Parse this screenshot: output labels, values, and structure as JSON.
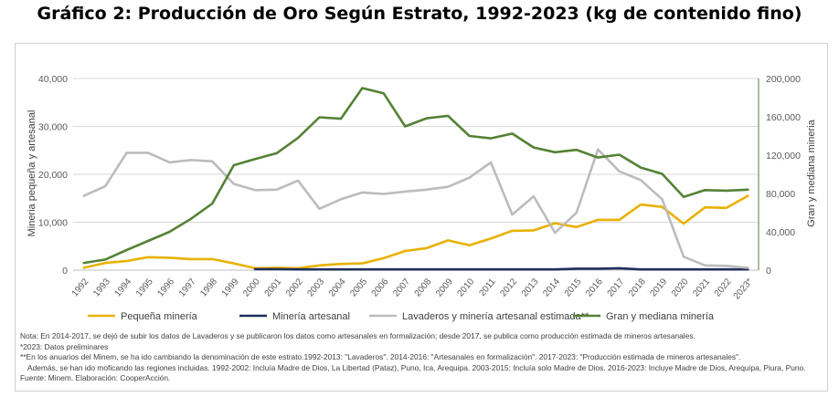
{
  "title": "Gráfico 2: Producción de Oro Según Estrato, 1992-2023 (kg de contenido fino)",
  "chart_data": {
    "type": "line",
    "x": [
      "1992",
      "1993",
      "1994",
      "1995",
      "1996",
      "1997",
      "1998",
      "1999",
      "2000",
      "2001",
      "2002",
      "2003",
      "2004",
      "2005",
      "2006",
      "2007",
      "2008",
      "2009",
      "2010",
      "2011",
      "2012",
      "2013",
      "2014",
      "2015",
      "2016",
      "2017",
      "2018",
      "2019",
      "2020",
      "2021",
      "2022",
      "2023*"
    ],
    "ylabel_left": "Mineria pequeña y artesanal",
    "ylabel_right": "Gran y mediana mineria",
    "ylim_left": [
      0,
      40000
    ],
    "ylim_right": [
      0,
      200000
    ],
    "yticks_left": [
      "0",
      "10,000",
      "20,000",
      "30,000",
      "40,000"
    ],
    "yticks_right": [
      "0",
      "40,000",
      "80,000",
      "120,000",
      "160,000",
      "200,000"
    ],
    "grid": true,
    "legend_position": "bottom",
    "series": [
      {
        "name": "Pequeña minería",
        "axis": "left",
        "color": "#e8b100",
        "values": [
          500,
          1500,
          1900,
          2700,
          2600,
          2300,
          2300,
          1400,
          400,
          500,
          400,
          1000,
          1300,
          1400,
          2500,
          4000,
          4600,
          6200,
          5200,
          6600,
          8200,
          8300,
          9800,
          9000,
          10500,
          10500,
          13700,
          13200,
          9700,
          13100,
          13000,
          15500
        ]
      },
      {
        "name": "Minería artesanal",
        "axis": "left",
        "color": "#1f2f5c",
        "values": [
          null,
          null,
          null,
          null,
          null,
          null,
          null,
          null,
          200,
          200,
          150,
          150,
          150,
          150,
          150,
          150,
          150,
          150,
          150,
          150,
          150,
          150,
          150,
          300,
          300,
          400,
          150,
          150,
          150,
          150,
          150,
          150
        ]
      },
      {
        "name": "Lavaderos y minería artesanal estimada**",
        "axis": "left",
        "color": "#bcbcbc",
        "values": [
          15500,
          17500,
          24500,
          24500,
          22500,
          23000,
          22700,
          18000,
          16700,
          16800,
          18700,
          12800,
          14800,
          16200,
          15900,
          16400,
          16800,
          17400,
          19300,
          22500,
          11600,
          15400,
          7800,
          12000,
          25200,
          20600,
          18800,
          14800,
          2800,
          1000,
          900,
          500
        ]
      },
      {
        "name": "Gran y mediana minería",
        "axis": "right",
        "color": "#548235",
        "values": [
          7500,
          11000,
          21000,
          30500,
          40000,
          53500,
          69500,
          109500,
          116000,
          122000,
          138000,
          159500,
          158000,
          190000,
          184500,
          150000,
          158500,
          161000,
          140000,
          137500,
          142500,
          128000,
          123000,
          125500,
          117500,
          120500,
          107000,
          100500,
          76500,
          83500,
          83000,
          84000
        ]
      }
    ]
  },
  "notes": {
    "line1": "Nota: En 2014-2017, se dejó de subir los datos de Lavaderos y se publicaron los datos como artesanales en formalización; desde 2017, se publica como producción estimada de mineros artesanales.",
    "line2": "*2023: Datos preliminares",
    "line3": "**En los anuarios del Minem, se ha ido cambiando la denominación de este estrato.1992-2013: \"Lavaderos\". 2014-2016: \"Artesanales en formalización\". 2017-2023: \"Producción estimada de mineros artesanales\".",
    "line4": "Además, se han ido moficando las regiones incluidas. 1992-2002: Incluía Madre de Dios, La Libertad (Pataz), Puno, Ica, Arequipa. 2003-2015: Incluía solo Madre de Dios. 2016-2023: Incluye Madre de Dios, Arequipa, Piura, Puno.",
    "line5": "Fuente: Minem. Elaboración: CooperAcción."
  }
}
